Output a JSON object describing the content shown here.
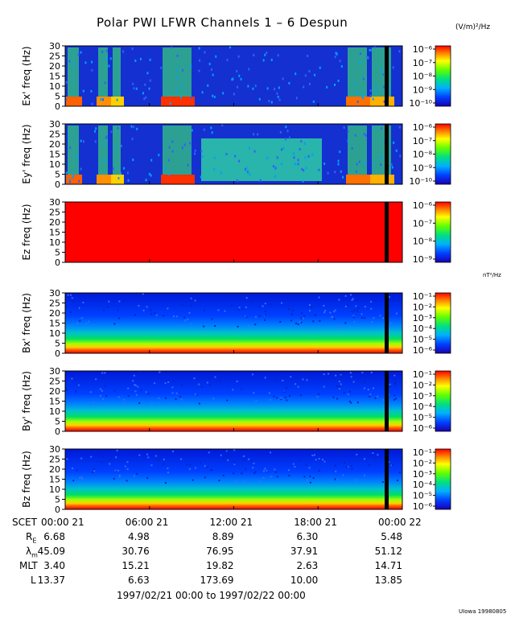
{
  "header": {
    "title": "Polar PWI LFWR Channels 1 – 6 Despun",
    "unit_electric": "(V/m)²/Hz",
    "unit_magnetic": "nT²/Hz"
  },
  "chart_data": {
    "type": "heatmap",
    "time_range": "1997/02/21 00:00 to 1997/02/22 00:00",
    "x_ticks": [
      "00:00 21",
      "06:00 21",
      "12:00 21",
      "18:00 21",
      "00:00 22"
    ],
    "y_ticks": [
      "0",
      "5",
      "10",
      "15",
      "20",
      "25",
      "30"
    ],
    "ylim": [
      0,
      30
    ],
    "panels": [
      {
        "ylabel": "Ex' freq (Hz)",
        "colorbar_ticks": [
          "10⁻⁶",
          "10⁻⁷",
          "10⁻⁸",
          "10⁻⁹",
          "10⁻¹⁰"
        ],
        "unit": "(V/m)²/Hz"
      },
      {
        "ylabel": "Ey' freq (Hz)",
        "colorbar_ticks": [
          "10⁻⁶",
          "10⁻⁷",
          "10⁻⁸",
          "10⁻⁹",
          "10⁻¹⁰"
        ],
        "unit": "(V/m)²/Hz"
      },
      {
        "ylabel": "Ez freq (Hz)",
        "colorbar_ticks": [
          "10⁻⁶",
          "10⁻⁷",
          "10⁻⁸",
          "10⁻⁹"
        ],
        "unit": "(V/m)²/Hz"
      },
      {
        "ylabel": "Bx' freq (Hz)",
        "colorbar_ticks": [
          "10⁻¹",
          "10⁻²",
          "10⁻³",
          "10⁻⁴",
          "10⁻⁵",
          "10⁻⁶"
        ],
        "unit": "nT²/Hz"
      },
      {
        "ylabel": "By' freq (Hz)",
        "colorbar_ticks": [
          "10⁻¹",
          "10⁻²",
          "10⁻³",
          "10⁻⁴",
          "10⁻⁵",
          "10⁻⁶"
        ],
        "unit": "nT²/Hz"
      },
      {
        "ylabel": "Bz freq (Hz)",
        "colorbar_ticks": [
          "10⁻¹",
          "10⁻²",
          "10⁻³",
          "10⁻⁴",
          "10⁻⁵",
          "10⁻⁶"
        ],
        "unit": "nT²/Hz"
      }
    ]
  },
  "ephemeris": {
    "scet_label": "SCET",
    "rows": [
      {
        "label": "RE",
        "values": [
          "6.68",
          "4.98",
          "8.89",
          "6.30",
          "5.48"
        ]
      },
      {
        "label": "λm",
        "values": [
          "45.09",
          "30.76",
          "76.95",
          "37.91",
          "51.12"
        ]
      },
      {
        "label": "MLT",
        "values": [
          "3.40",
          "15.21",
          "19.82",
          "2.63",
          "14.71"
        ]
      },
      {
        "label": "L",
        "values": [
          "13.37",
          "6.63",
          "173.69",
          "10.00",
          "13.85"
        ]
      }
    ]
  },
  "footer": {
    "date_range": "1997/02/21 00:00 to 1997/02/22 00:00",
    "credit": "UIowa 19980805"
  }
}
